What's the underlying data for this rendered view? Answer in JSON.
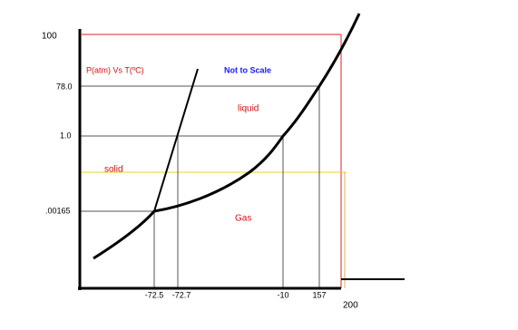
{
  "diagram": {
    "title": "P(atm) Vs T(ºC)",
    "note": "Not to Scale",
    "y_labels": [
      "100",
      "78.0",
      "1.0",
      ".00165"
    ],
    "x_labels": [
      "-72.5",
      "-72.7",
      "-10",
      "157",
      "200"
    ],
    "regions": [
      "liquid",
      "solid",
      "Gas"
    ]
  }
}
